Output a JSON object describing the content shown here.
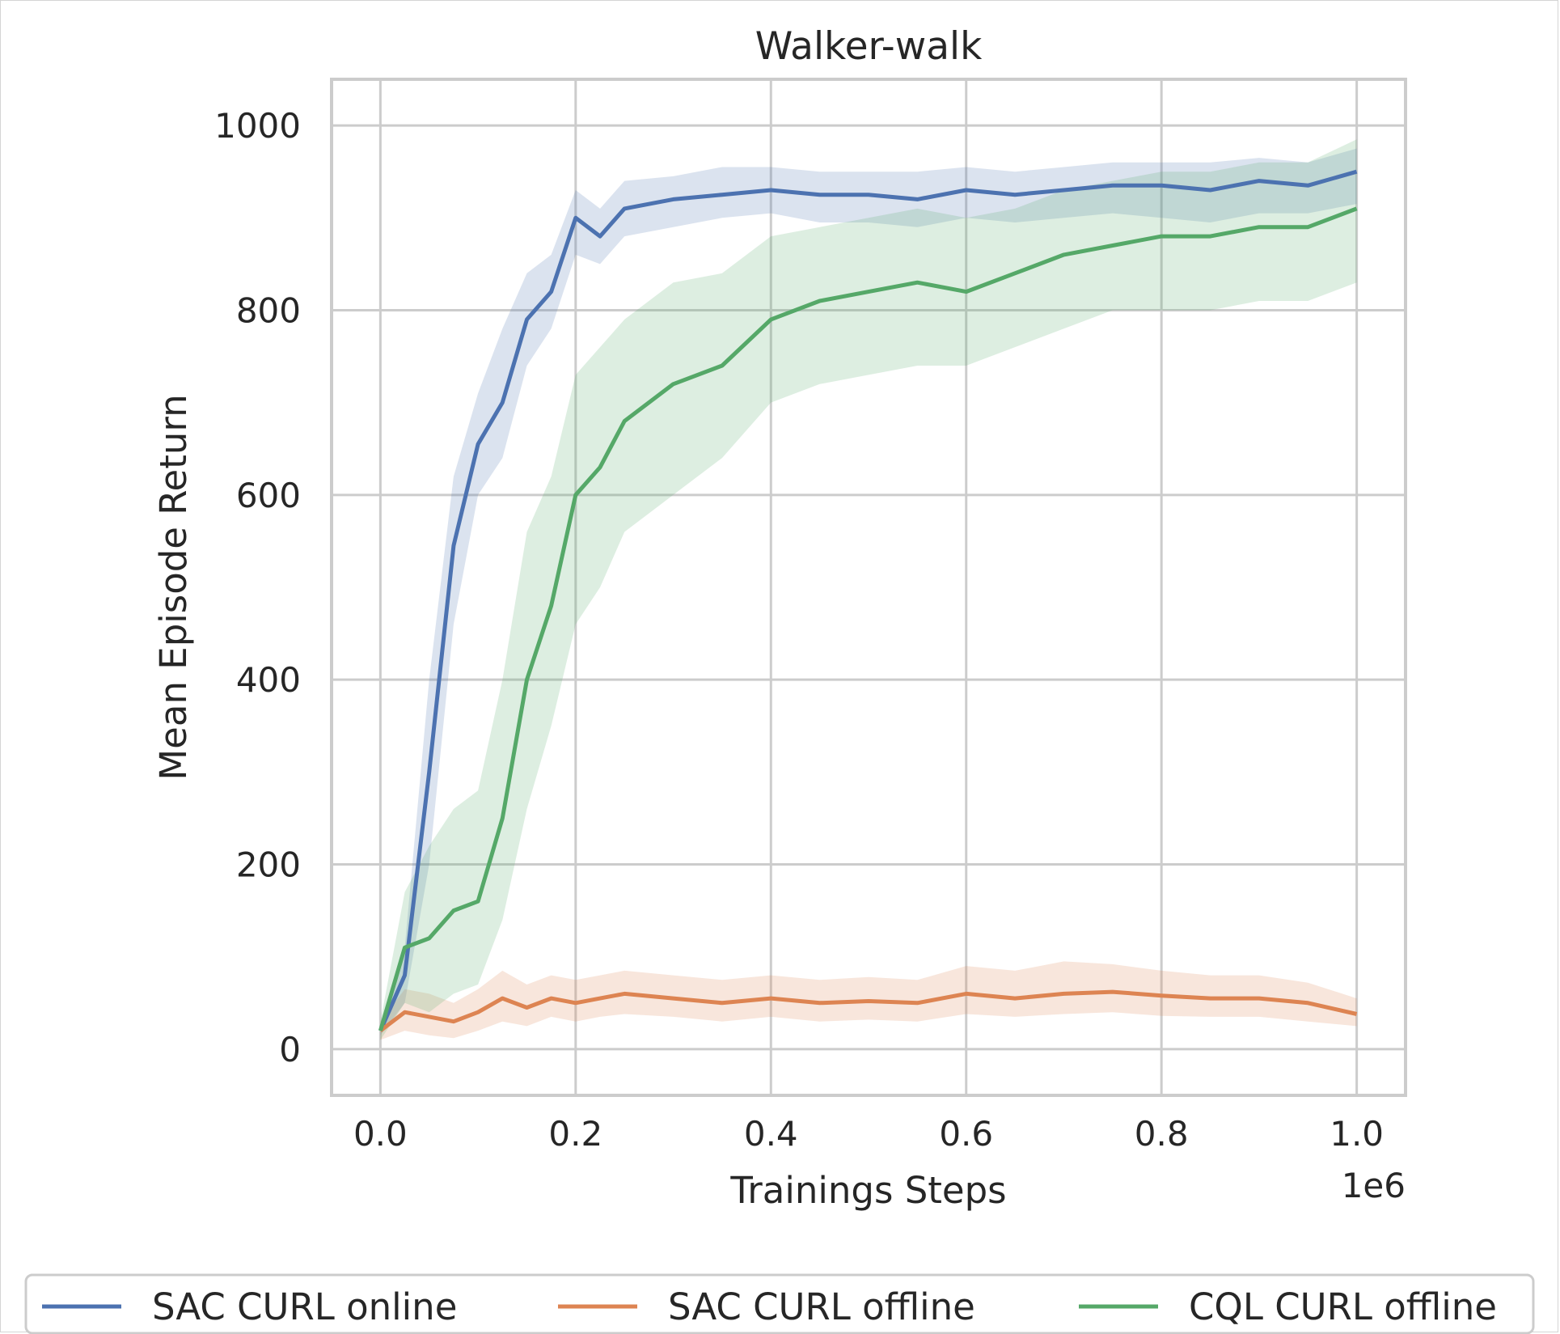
{
  "chart_data": {
    "type": "line",
    "title": "Walker-walk",
    "xlabel": "Trainings Steps",
    "ylabel": "Mean Episode Return",
    "x_offset_label": "1e6",
    "xlim": [
      -0.05,
      1.05
    ],
    "ylim": [
      -50,
      1050
    ],
    "xticks": [
      0.0,
      0.2,
      0.4,
      0.6,
      0.8,
      1.0
    ],
    "xtick_labels": [
      "0.0",
      "0.2",
      "0.4",
      "0.6",
      "0.8",
      "1.0"
    ],
    "yticks": [
      0,
      200,
      400,
      600,
      800,
      1000
    ],
    "ytick_labels": [
      "0",
      "200",
      "400",
      "600",
      "800",
      "1000"
    ],
    "grid": true,
    "legend": "bottom",
    "x": [
      0,
      0.025,
      0.05,
      0.075,
      0.1,
      0.125,
      0.15,
      0.175,
      0.2,
      0.225,
      0.25,
      0.3,
      0.35,
      0.4,
      0.45,
      0.5,
      0.55,
      0.6,
      0.65,
      0.7,
      0.75,
      0.8,
      0.85,
      0.9,
      0.95,
      1.0
    ],
    "series": [
      {
        "name": "SAC CURL online",
        "color": "#4c72b0",
        "values": [
          20,
          80,
          300,
          545,
          655,
          700,
          790,
          820,
          900,
          880,
          910,
          920,
          925,
          930,
          925,
          925,
          920,
          930,
          925,
          930,
          935,
          935,
          930,
          940,
          935,
          950
        ],
        "lower": [
          15,
          50,
          200,
          460,
          600,
          640,
          740,
          780,
          860,
          850,
          880,
          890,
          900,
          905,
          895,
          895,
          890,
          900,
          895,
          900,
          905,
          900,
          895,
          905,
          905,
          915
        ],
        "upper": [
          25,
          110,
          400,
          620,
          710,
          780,
          840,
          860,
          930,
          910,
          940,
          945,
          955,
          955,
          950,
          950,
          950,
          955,
          950,
          955,
          960,
          960,
          960,
          965,
          960,
          975
        ]
      },
      {
        "name": "SAC CURL offline",
        "color": "#dd8452",
        "values": [
          20,
          40,
          35,
          30,
          40,
          55,
          45,
          55,
          50,
          55,
          60,
          55,
          50,
          55,
          50,
          52,
          50,
          60,
          55,
          60,
          62,
          58,
          55,
          55,
          50,
          38
        ],
        "lower": [
          10,
          20,
          15,
          12,
          20,
          30,
          25,
          35,
          30,
          35,
          38,
          35,
          30,
          35,
          30,
          32,
          30,
          38,
          35,
          38,
          40,
          36,
          35,
          35,
          30,
          25
        ],
        "upper": [
          30,
          65,
          60,
          50,
          65,
          85,
          70,
          80,
          75,
          80,
          85,
          80,
          75,
          80,
          75,
          78,
          75,
          90,
          85,
          95,
          92,
          85,
          80,
          80,
          72,
          55
        ]
      },
      {
        "name": "CQL CURL offline",
        "color": "#55a868",
        "values": [
          20,
          110,
          120,
          150,
          160,
          250,
          400,
          480,
          600,
          630,
          680,
          720,
          740,
          790,
          810,
          820,
          830,
          820,
          840,
          860,
          870,
          880,
          880,
          890,
          890,
          910
        ],
        "lower": [
          10,
          50,
          40,
          60,
          70,
          140,
          260,
          350,
          460,
          500,
          560,
          600,
          640,
          700,
          720,
          730,
          740,
          740,
          760,
          780,
          800,
          800,
          800,
          810,
          810,
          830
        ],
        "upper": [
          30,
          170,
          220,
          260,
          280,
          400,
          560,
          620,
          730,
          760,
          790,
          830,
          840,
          880,
          890,
          900,
          910,
          900,
          910,
          930,
          940,
          950,
          950,
          960,
          960,
          985
        ]
      }
    ]
  }
}
